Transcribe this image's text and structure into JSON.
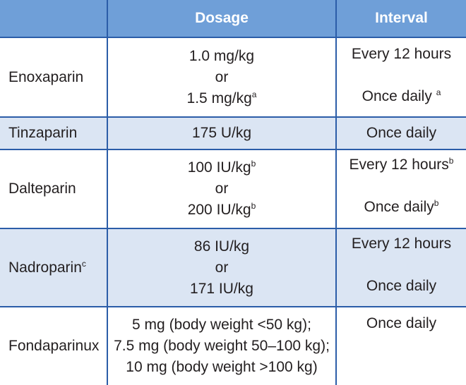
{
  "header": {
    "col1": "",
    "dosage": "Dosage",
    "interval": "Interval"
  },
  "rows": [
    {
      "drug": "Enoxaparin",
      "drug_sup": "",
      "dose_lines": [
        "1.0 mg/kg",
        "or",
        "1.5 mg/kg"
      ],
      "dose_last_sup": "a",
      "interval_top": "Every 12 hours",
      "interval_top_sup": "",
      "interval_bottom": "Once daily",
      "interval_bottom_sup": "a"
    },
    {
      "drug": "Tinzaparin",
      "dose": "175 U/kg",
      "interval": "Once daily"
    },
    {
      "drug": "Dalteparin",
      "dose_lines": [
        "100 IU/kg",
        "or",
        "200 IU/kg"
      ],
      "dose_sups": [
        "b",
        "",
        "b"
      ],
      "interval_top": "Every 12 hours",
      "interval_top_sup": "b",
      "interval_bottom": "Once daily",
      "interval_bottom_sup": "b"
    },
    {
      "drug": "Nadroparin",
      "drug_sup": "c",
      "dose_lines": [
        "86 IU/kg",
        "or",
        "171 IU/kg"
      ],
      "interval_top": "Every 12 hours",
      "interval_bottom": "Once daily"
    },
    {
      "drug": "Fondaparinux",
      "dose_lines": [
        "5 mg (body weight <50 kg);",
        "7.5 mg (body weight 50–100 kg);",
        "10 mg (body weight >100 kg)"
      ],
      "interval": "Once daily"
    }
  ]
}
